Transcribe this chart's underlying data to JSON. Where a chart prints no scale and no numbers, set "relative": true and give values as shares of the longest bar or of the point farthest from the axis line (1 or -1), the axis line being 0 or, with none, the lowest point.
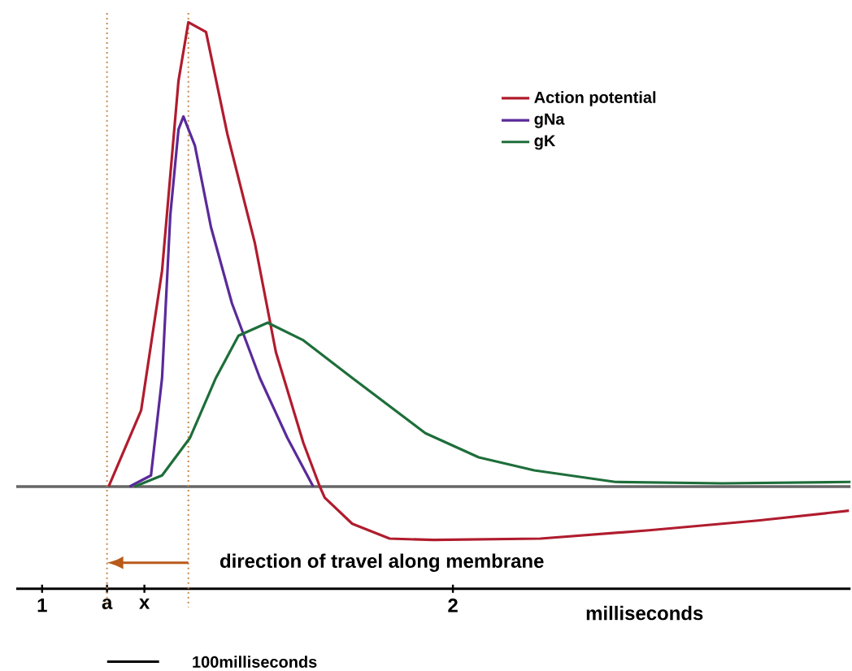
{
  "chart_data": {
    "type": "line",
    "relative": true,
    "xlabel": "milliseconds",
    "xlim": [
      0.937,
      2.968
    ],
    "xticks": [
      1,
      {
        "value": 1.158,
        "label": "a"
      },
      {
        "value": 1.249,
        "label": "x"
      },
      2
    ],
    "legend": "top right",
    "line_style": "solid",
    "marker": "none",
    "grid": false,
    "series": [
      {
        "name": "Action potential",
        "color": "#b01c2e",
        "x": [
          1.162,
          1.241,
          1.292,
          1.332,
          1.356,
          1.399,
          1.451,
          1.518,
          1.569,
          1.636,
          1.676,
          1.688,
          1.755,
          1.846,
          1.953,
          2.213,
          2.478,
          2.743,
          2.964
        ],
        "values": [
          0,
          0.164,
          0.465,
          0.874,
          1.0,
          0.979,
          0.759,
          0.524,
          0.29,
          0.094,
          0,
          -0.024,
          -0.08,
          -0.112,
          -0.115,
          -0.112,
          -0.094,
          -0.073,
          -0.052
        ]
      },
      {
        "name": "gNa",
        "color": "#5a2a9a",
        "x": [
          1.213,
          1.265,
          1.292,
          1.312,
          1.332,
          1.344,
          1.372,
          1.411,
          1.462,
          1.53,
          1.597,
          1.66
        ],
        "values": [
          0,
          0.024,
          0.234,
          0.584,
          0.769,
          0.797,
          0.734,
          0.559,
          0.395,
          0.234,
          0.105,
          0
        ]
      },
      {
        "name": "gK",
        "color": "#1e6e3a",
        "x": [
          1.225,
          1.292,
          1.36,
          1.423,
          1.478,
          1.549,
          1.636,
          1.755,
          1.933,
          2.063,
          2.198,
          2.395,
          2.656,
          2.968
        ],
        "values": [
          0,
          0.024,
          0.105,
          0.234,
          0.325,
          0.353,
          0.315,
          0.234,
          0.115,
          0.063,
          0.035,
          0.01,
          0.007,
          0.01
        ]
      }
    ],
    "ref_lines": [
      {
        "axis": "y",
        "value": 0,
        "color": "#666666",
        "line_style": "solid"
      },
      {
        "axis": "x",
        "value": 1.158,
        "color": "#c8894a",
        "line_style": "dotted"
      },
      {
        "axis": "x",
        "value": 1.356,
        "color": "#c8894a",
        "line_style": "dotted"
      }
    ],
    "annotations": [
      "direction of travel along membrane",
      "100milliseconds"
    ]
  }
}
